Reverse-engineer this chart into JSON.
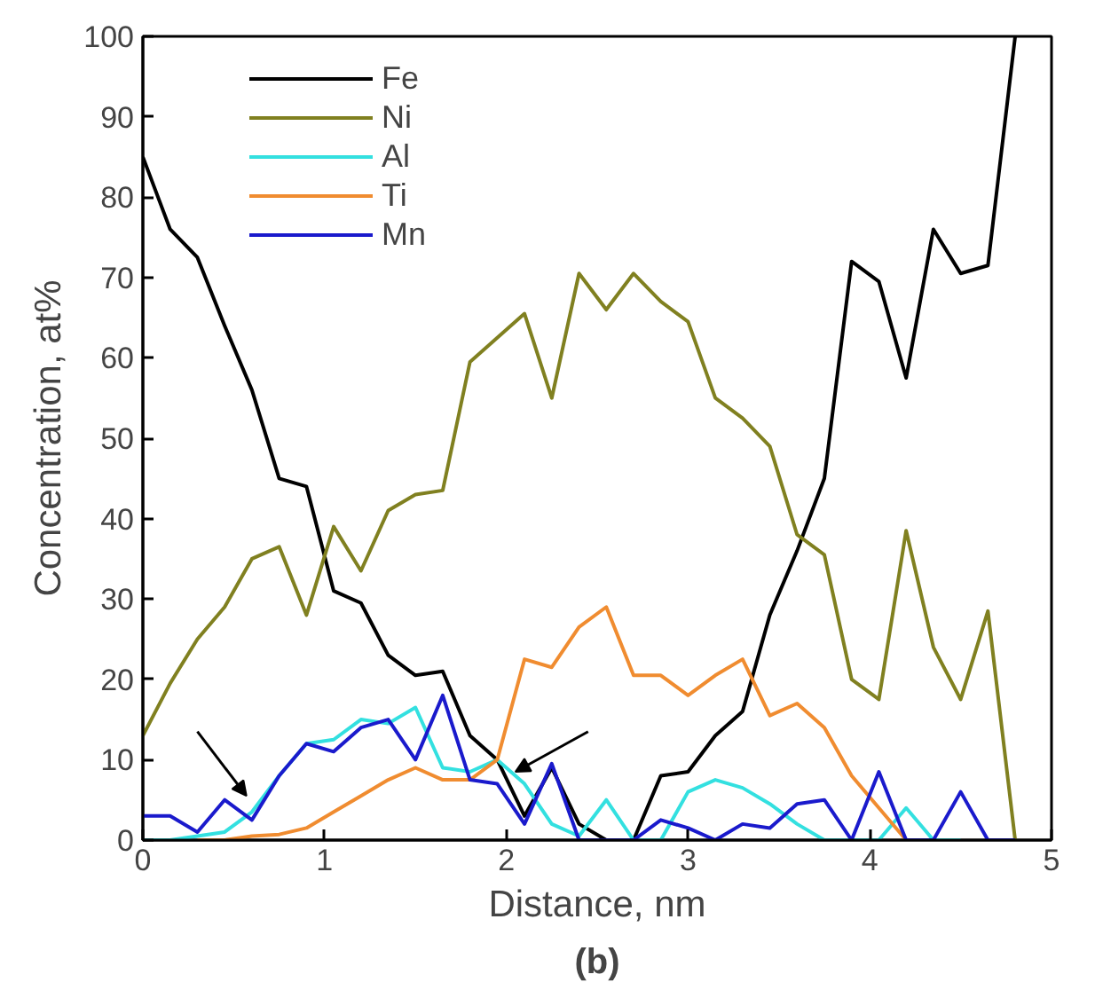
{
  "chart_data": {
    "type": "line",
    "xlabel": "Distance, nm",
    "ylabel": "Concentration, at%",
    "annotations": [
      "(b)"
    ],
    "x": [
      0,
      0.15,
      0.3,
      0.45,
      0.6,
      0.75,
      0.9,
      1.05,
      1.2,
      1.35,
      1.5,
      1.65,
      1.8,
      1.95,
      2.1,
      2.25,
      2.4,
      2.55,
      2.7,
      2.85,
      3.0,
      3.15,
      3.3,
      3.45,
      3.6,
      3.75,
      3.9,
      4.05,
      4.2,
      4.35,
      4.5,
      4.65,
      4.8
    ],
    "series": [
      {
        "name": "Fe",
        "color": "#000000",
        "values": [
          85,
          76,
          72.5,
          64,
          56,
          45,
          44,
          31,
          29.5,
          23,
          20.5,
          21,
          13,
          10,
          3,
          9,
          2,
          0,
          0,
          8,
          8.5,
          13,
          16,
          28,
          36,
          45,
          72,
          69.5,
          57.5,
          76,
          70.5,
          71.5,
          100
        ]
      },
      {
        "name": "Ni",
        "color": "#808020",
        "values": [
          13,
          19.5,
          25,
          29,
          35,
          36.5,
          28,
          39,
          33.5,
          41,
          43,
          43.5,
          59.5,
          62.5,
          65.5,
          55,
          70.5,
          66,
          70.5,
          67,
          64.5,
          55,
          52.5,
          49,
          38,
          35.5,
          20,
          17.5,
          38.5,
          24,
          17.5,
          28.5,
          0
        ]
      },
      {
        "name": "Al",
        "color": "#33e0e0",
        "values": [
          0,
          0,
          0.5,
          1,
          3.5,
          8,
          12,
          12.5,
          15,
          14.5,
          16.5,
          9,
          8.5,
          10,
          7,
          2,
          0.5,
          5,
          0,
          0,
          6,
          7.5,
          6.5,
          4.5,
          2,
          0,
          0,
          0,
          4,
          0,
          0,
          null,
          null
        ]
      },
      {
        "name": "Ti",
        "color": "#f08c30",
        "values": [
          null,
          null,
          0,
          0,
          0.5,
          0.7,
          1.5,
          3.5,
          5.5,
          7.5,
          9,
          7.5,
          7.5,
          10,
          22.5,
          21.5,
          26.5,
          29,
          20.5,
          20.5,
          18,
          20.5,
          22.5,
          15.5,
          17,
          14,
          8,
          4,
          0,
          null,
          null,
          null,
          null
        ]
      },
      {
        "name": "Mn",
        "color": "#1a1acc",
        "values": [
          3,
          3,
          1,
          5,
          2.5,
          8,
          12,
          11,
          14,
          15,
          10,
          18,
          7.5,
          7,
          2,
          9.5,
          0,
          0,
          0,
          2.5,
          1.5,
          0,
          2,
          1.5,
          4.5,
          5,
          0,
          8.5,
          0,
          0,
          6,
          0,
          0
        ]
      }
    ],
    "xlim": [
      0,
      5
    ],
    "ylim": [
      0,
      100
    ],
    "xticks": [
      0,
      1,
      2,
      3,
      4,
      5
    ],
    "yticks": [
      0,
      10,
      20,
      30,
      40,
      50,
      60,
      70,
      80,
      90,
      100
    ],
    "grid": false,
    "legend": "top left"
  }
}
